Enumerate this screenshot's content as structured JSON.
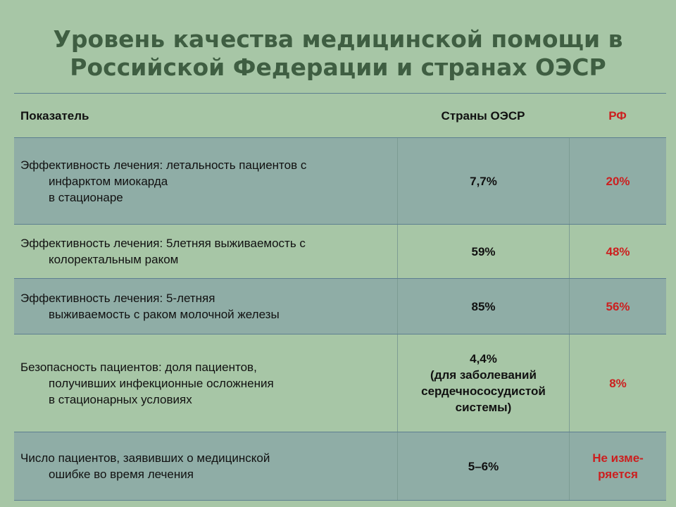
{
  "title": {
    "line1": "Уровень качества медицинской помощи в",
    "line2": "Российской Федерации и странах ОЭСР"
  },
  "table": {
    "headers": {
      "indicator": "Показатель",
      "oecd": "Страны ОЭСР",
      "rf": "РФ"
    },
    "rows": [
      {
        "indicator_lines": [
          "Эффективность лечения: летальность пациентов с",
          "инфарктом миокарда",
          "в стационаре"
        ],
        "oecd_lines": [
          "7,7%"
        ],
        "rf_lines": [
          "20%"
        ]
      },
      {
        "indicator_lines": [
          "Эффективность лечения: 5летняя выживаемость с",
          "колоректальным раком"
        ],
        "oecd_lines": [
          "59%"
        ],
        "rf_lines": [
          "48%"
        ]
      },
      {
        "indicator_lines": [
          "Эффективность лечения: 5-летняя",
          "выживаемость с раком молочной железы"
        ],
        "oecd_lines": [
          "85%"
        ],
        "rf_lines": [
          "56%"
        ]
      },
      {
        "indicator_lines": [
          "Безопасность пациентов: доля пациентов,",
          "получивших инфекционные осложнения",
          "в стационарных условиях"
        ],
        "oecd_lines": [
          "4,4%",
          "(для заболеваний",
          "сердечнососудистой",
          "системы)"
        ],
        "rf_lines": [
          "8%"
        ]
      },
      {
        "indicator_lines": [
          "Число пациентов, заявивших о медицинской",
          "ошибке во время лечения"
        ],
        "oecd_lines": [
          "5–6%"
        ],
        "rf_lines": [
          "Не изме-",
          "ряется"
        ]
      }
    ]
  },
  "colors": {
    "background": "#a7c6a6",
    "shaded_row": "#8fada6",
    "title": "#3f5e42",
    "rf_value": "#cc1f1f"
  }
}
